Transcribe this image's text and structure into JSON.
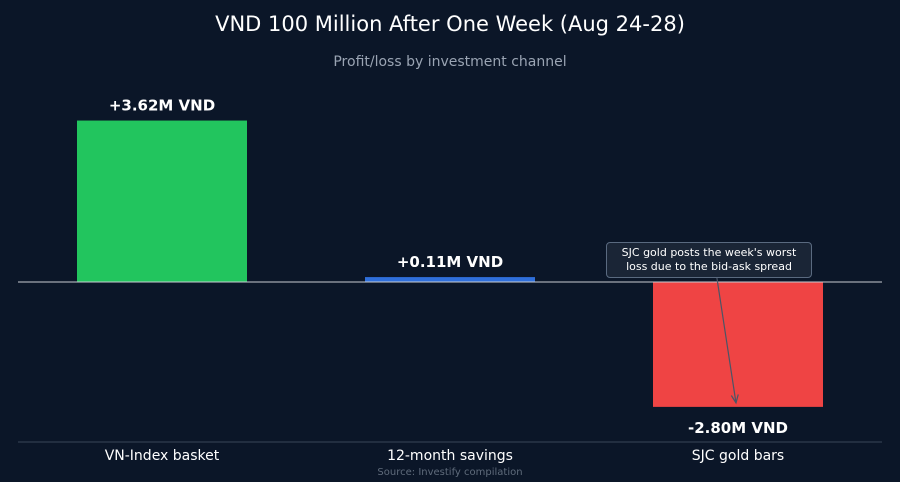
{
  "chart_data": {
    "type": "bar",
    "title": "VND 100 Million After One Week (Aug 24-28)",
    "subtitle": "Profit/loss by investment channel",
    "source": "Source: Investify compilation",
    "xlabel": "",
    "ylabel": "",
    "unit": "M VND",
    "categories": [
      "VN-Index basket",
      "12-month savings",
      "SJC gold bars"
    ],
    "values": [
      3.62,
      0.11,
      -2.8
    ],
    "data_labels": [
      "+3.62M VND",
      "+0.11M VND",
      "-2.80M VND"
    ],
    "colors": [
      "#22c55e",
      "#2f6fdb",
      "#ef4444"
    ],
    "ylim": [
      -3.5,
      4.5
    ],
    "grid": false,
    "legend": "none",
    "annotation": {
      "text": "SJC gold posts the week's worst loss due to the bid-ask spread",
      "target_category": "SJC gold bars"
    }
  },
  "colors": {
    "background": "#0b1628",
    "zero_line": "#c8ccd2",
    "axis_line": "#3a4658",
    "title": "#ffffff",
    "subtitle": "#9aa4b3",
    "tick_label": "#ffffff",
    "source": "#5f6b7b"
  }
}
